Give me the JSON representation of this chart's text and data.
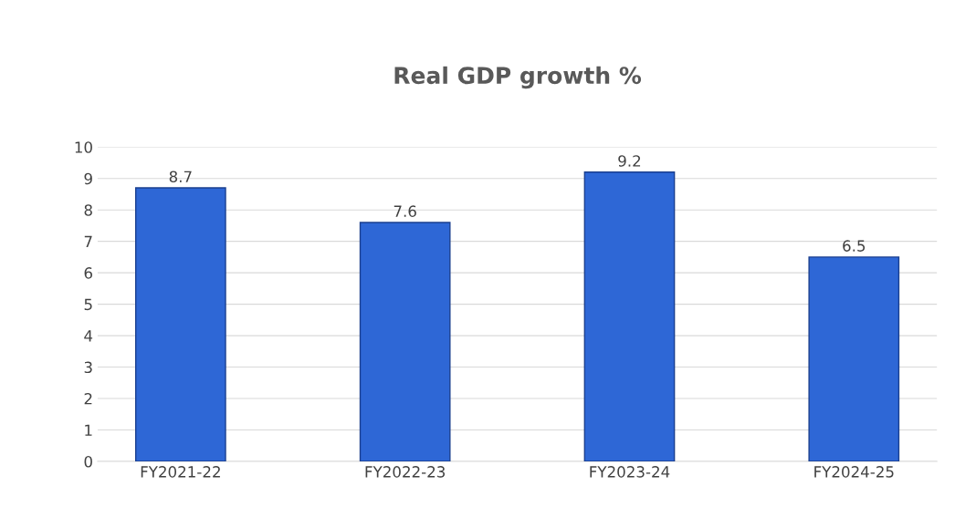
{
  "chart_data": {
    "type": "bar",
    "title": "Real GDP growth %",
    "categories": [
      "FY2021-22",
      "FY2022-23",
      "FY2023-24",
      "FY2024-25"
    ],
    "values": [
      8.7,
      7.6,
      9.2,
      6.5
    ],
    "color": "#2e67d6",
    "ylim": [
      0,
      10
    ],
    "yticks": [
      0,
      1,
      2,
      3,
      4,
      5,
      6,
      7,
      8,
      9,
      10
    ],
    "grid": "y",
    "data_labels": true
  }
}
